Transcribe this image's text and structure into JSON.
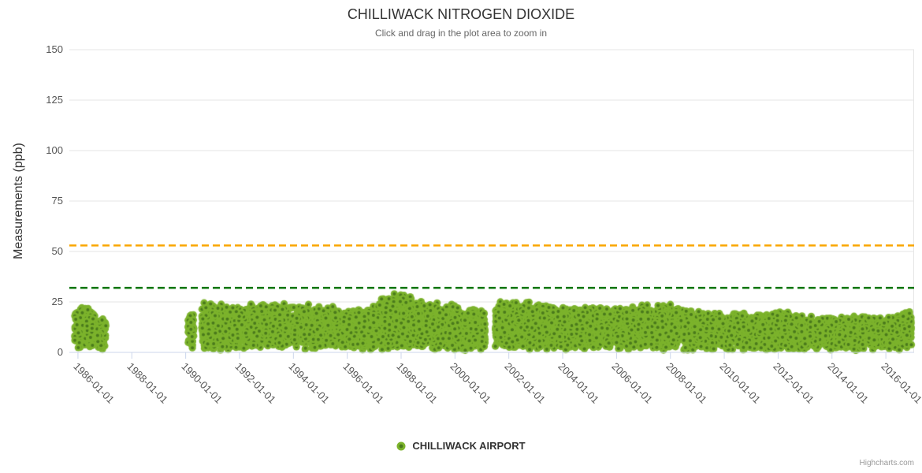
{
  "chart_data": {
    "type": "scatter",
    "title": "CHILLIWACK NITROGEN DIOXIDE",
    "subtitle": "Click and drag in the plot area to zoom in",
    "ylabel": "Measurements (ppb)",
    "xlabel": "",
    "unit": "ppb",
    "ylim": [
      0,
      150
    ],
    "yticks": [
      0,
      25,
      50,
      75,
      100,
      125,
      150
    ],
    "xtick_labels": [
      "1986-01-01",
      "1988-01-01",
      "1990-01-01",
      "1992-01-01",
      "1994-01-01",
      "1996-01-01",
      "1998-01-01",
      "2000-01-01",
      "2002-01-01",
      "2004-01-01",
      "2006-01-01",
      "2008-01-01",
      "2010-01-01",
      "2012-01-01",
      "2014-01-01",
      "2016-01-01"
    ],
    "x_domain_years": [
      1985.68,
      2017.05
    ],
    "grid": "horizontal-only",
    "legend_position": "bottom-center",
    "credits": "Highcharts.com",
    "plot_lines": [
      {
        "value": 53,
        "color": "#F9A602",
        "style": "dashed"
      },
      {
        "value": 32,
        "color": "#077407",
        "style": "dashed"
      }
    ],
    "series": [
      {
        "name": "CHILLIWACK AIRPORT",
        "marker": {
          "fill": "#7CB32C",
          "center": "#4A7A1C",
          "radius": 4.6,
          "center_radius": 2.0
        },
        "value_range_ppb": [
          0,
          31
        ],
        "seed": 7,
        "segments": [
          {
            "start": 1985.88,
            "end": 1987.05,
            "per_year": 230,
            "lo": 1.0,
            "envelope": [
              [
                1985.88,
                21
              ],
              [
                1986.1,
                24
              ],
              [
                1986.45,
                22
              ],
              [
                1986.7,
                17
              ],
              [
                1987.05,
                19
              ]
            ]
          },
          {
            "start": 1990.08,
            "end": 1990.3,
            "per_year": 300,
            "lo": 1.0,
            "envelope": [
              [
                1990.08,
                21
              ],
              [
                1990.3,
                21
              ]
            ]
          },
          {
            "start": 1990.6,
            "end": 2001.12,
            "per_year": 340,
            "lo": 1.0,
            "envelope": [
              [
                1990.6,
                25
              ],
              [
                1991.2,
                26
              ],
              [
                1992,
                24
              ],
              [
                1993,
                25
              ],
              [
                1994,
                24
              ],
              [
                1995,
                24
              ],
              [
                1995.9,
                22
              ],
              [
                1996.8,
                23
              ],
              [
                1997.3,
                27
              ],
              [
                1997.9,
                31
              ],
              [
                1998.4,
                30
              ],
              [
                1998.9,
                26
              ],
              [
                1999.6,
                25
              ],
              [
                2000.4,
                23
              ],
              [
                2001.12,
                22
              ]
            ]
          },
          {
            "start": 2001.5,
            "end": 2016.95,
            "per_year": 340,
            "lo": 0.8,
            "envelope": [
              [
                2001.5,
                26
              ],
              [
                2002.2,
                27
              ],
              [
                2003,
                25
              ],
              [
                2004,
                24
              ],
              [
                2005,
                23
              ],
              [
                2006,
                23
              ],
              [
                2007,
                24
              ],
              [
                2007.9,
                25
              ],
              [
                2008.4,
                22
              ],
              [
                2009.2,
                20
              ],
              [
                2010,
                20
              ],
              [
                2011,
                20
              ],
              [
                2012.2,
                21
              ],
              [
                2013,
                19
              ],
              [
                2014,
                18
              ],
              [
                2015,
                19
              ],
              [
                2016,
                18
              ],
              [
                2016.95,
                21
              ]
            ]
          }
        ]
      }
    ]
  },
  "colors": {
    "background": "#FFFFFF",
    "grid": "#E6E6E6",
    "axis_line": "#CCD6EB",
    "tick": "#CCD6EB",
    "title": "#333333",
    "subtitle": "#666666",
    "labels": "#555555",
    "credits": "#999999"
  }
}
